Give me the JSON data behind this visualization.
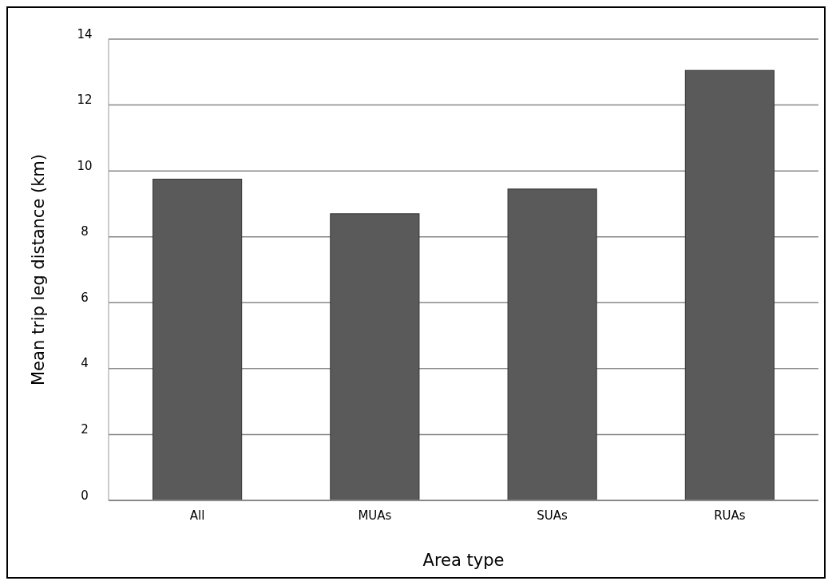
{
  "chart_data": {
    "type": "bar",
    "xlabel": "Area type",
    "ylabel": "Mean trip leg distance (km)",
    "categories": [
      "All",
      "MUAs",
      "SUAs",
      "RUAs"
    ],
    "values": [
      9.75,
      8.7,
      9.45,
      13.05
    ],
    "color": "#5a5a5a",
    "ylim": [
      0,
      14
    ],
    "yticks": [
      0,
      2,
      4,
      6,
      8,
      10,
      12,
      14
    ],
    "grid": "y"
  }
}
